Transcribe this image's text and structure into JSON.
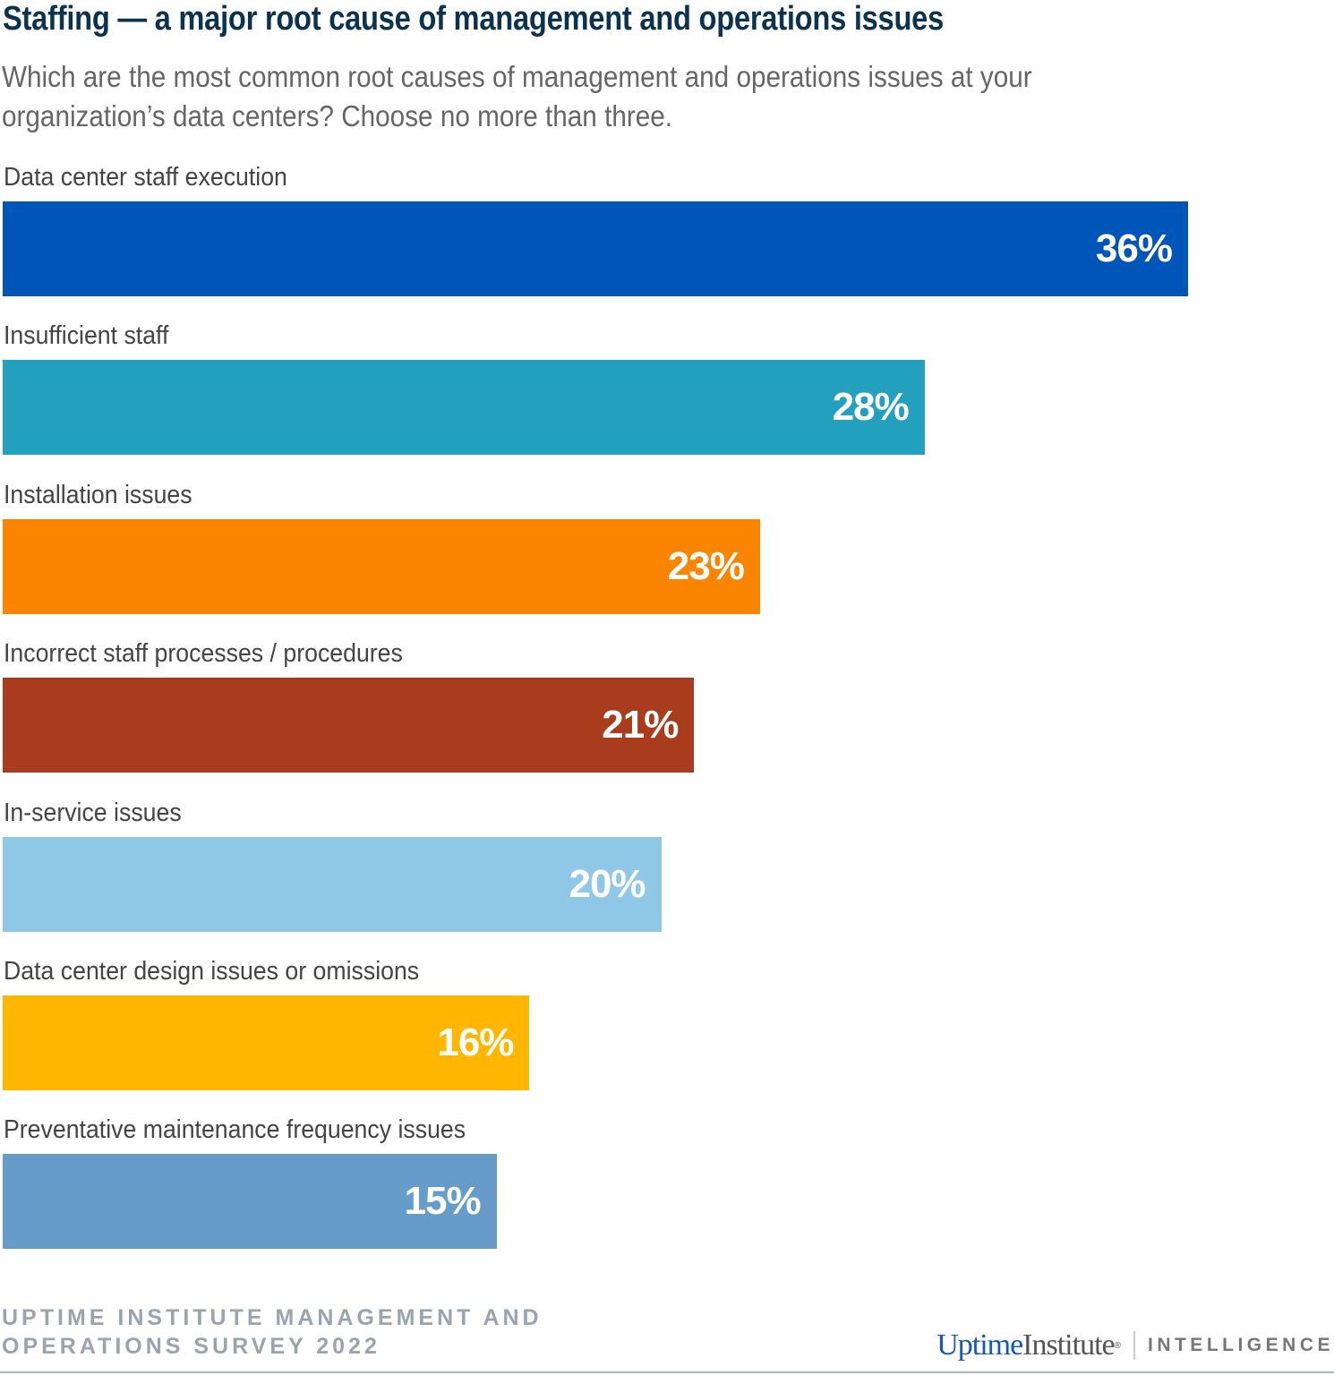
{
  "chart_data": {
    "type": "bar",
    "orientation": "horizontal",
    "title": "Staffing — a major root cause of management and operations issues",
    "subtitle_lines": [
      "Which are the most common root causes of management and operations issues at your",
      "organization’s data centers? Choose no more than three."
    ],
    "categories": [
      "Data center staff execution",
      "Insufficient staff",
      "Installation issues",
      "Incorrect staff processes / procedures",
      "In-service issues",
      "Data center design issues or omissions",
      "Preventative maintenance frequency issues"
    ],
    "values": [
      36,
      28,
      23,
      21,
      20,
      16,
      15
    ],
    "value_labels": [
      "36%",
      "28%",
      "23%",
      "21%",
      "20%",
      "16%",
      "15%"
    ],
    "colors": [
      "#0056b8",
      "#22a0bd",
      "#fb8500",
      "#a93c1c",
      "#8fc8e6",
      "#feb600",
      "#659cca"
    ],
    "unit": "%",
    "xlim": [
      0,
      36
    ],
    "grid": false
  },
  "footer": {
    "source_lines": [
      "UPTIME INSTITUTE MANAGEMENT AND",
      "OPERATIONS SURVEY 2022"
    ],
    "logo_uptime": "Uptime",
    "logo_institute": "Institute",
    "logo_mark": "®",
    "logo_intelligence": "INTELLIGENCE"
  }
}
